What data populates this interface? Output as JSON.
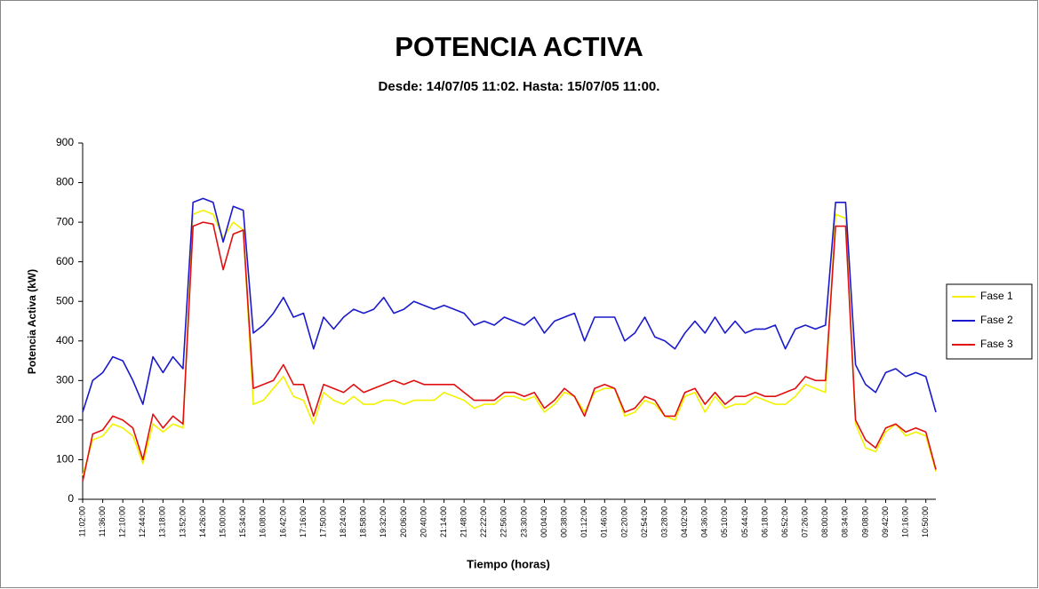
{
  "chart_data": {
    "type": "line",
    "title": "POTENCIA ACTIVA",
    "subtitle": "Desde: 14/07/05 11:02. Hasta: 15/07/05 11:00.",
    "x_label": "Tiempo (horas)",
    "y_label": "Potencia Activa (kW)",
    "categories": [
      "11:02:00",
      null,
      "11:36:00",
      null,
      "12:10:00",
      null,
      "12:44:00",
      null,
      "13:18:00",
      null,
      "13:52:00",
      null,
      "14:26:00",
      null,
      "15:00:00",
      null,
      "15:34:00",
      null,
      "16:08:00",
      null,
      "16:42:00",
      null,
      "17:16:00",
      null,
      "17:50:00",
      null,
      "18:24:00",
      null,
      "18:58:00",
      null,
      "19:32:00",
      null,
      "20:06:00",
      null,
      "20:40:00",
      null,
      "21:14:00",
      null,
      "21:48:00",
      null,
      "22:22:00",
      null,
      "22:56:00",
      null,
      "23:30:00",
      null,
      "00:04:00",
      null,
      "00:38:00",
      null,
      "01:12:00",
      null,
      "01:46:00",
      null,
      "02:20:00",
      null,
      "02:54:00",
      null,
      "03:28:00",
      null,
      "04:02:00",
      null,
      "04:36:00",
      null,
      "05:10:00",
      null,
      "05:44:00",
      null,
      "06:18:00",
      null,
      "06:52:00",
      null,
      "07:26:00",
      null,
      "08:00:00",
      null,
      "08:34:00",
      null,
      "09:08:00",
      null,
      "09:42:00",
      null,
      "10:16:00",
      null,
      "10:50:00",
      null
    ],
    "series": [
      {
        "name": "Fase 1",
        "color": "#f2f200",
        "values": [
          60,
          150,
          160,
          190,
          180,
          160,
          90,
          190,
          170,
          190,
          180,
          720,
          730,
          720,
          660,
          700,
          680,
          240,
          250,
          280,
          310,
          260,
          250,
          190,
          270,
          250,
          240,
          260,
          240,
          240,
          250,
          250,
          240,
          250,
          250,
          250,
          270,
          260,
          250,
          230,
          240,
          240,
          260,
          260,
          250,
          260,
          220,
          240,
          270,
          260,
          220,
          270,
          280,
          280,
          210,
          220,
          250,
          240,
          210,
          200,
          260,
          270,
          220,
          260,
          230,
          240,
          240,
          260,
          250,
          240,
          240,
          260,
          290,
          280,
          270,
          720,
          710,
          190,
          130,
          120,
          170,
          190,
          160,
          170,
          160,
          70
        ]
      },
      {
        "name": "Fase 2",
        "color": "#1a1acc",
        "values": [
          220,
          300,
          320,
          360,
          350,
          300,
          240,
          360,
          320,
          360,
          330,
          750,
          760,
          750,
          650,
          740,
          730,
          420,
          440,
          470,
          510,
          460,
          470,
          380,
          460,
          430,
          460,
          480,
          470,
          480,
          510,
          470,
          480,
          500,
          490,
          480,
          490,
          480,
          470,
          440,
          450,
          440,
          460,
          450,
          440,
          460,
          420,
          450,
          460,
          470,
          400,
          460,
          460,
          460,
          400,
          420,
          460,
          410,
          400,
          380,
          420,
          450,
          420,
          460,
          420,
          450,
          420,
          430,
          430,
          440,
          380,
          430,
          440,
          430,
          440,
          750,
          750,
          340,
          290,
          270,
          320,
          330,
          310,
          320,
          310,
          220
        ]
      },
      {
        "name": "Fase 3",
        "color": "#e01010",
        "values": [
          45,
          165,
          175,
          210,
          200,
          180,
          100,
          215,
          180,
          210,
          190,
          690,
          700,
          695,
          580,
          670,
          680,
          280,
          290,
          300,
          340,
          290,
          290,
          210,
          290,
          280,
          270,
          290,
          270,
          280,
          290,
          300,
          290,
          300,
          290,
          290,
          290,
          290,
          270,
          250,
          250,
          250,
          270,
          270,
          260,
          270,
          230,
          250,
          280,
          260,
          210,
          280,
          290,
          280,
          220,
          230,
          260,
          250,
          210,
          210,
          270,
          280,
          240,
          270,
          240,
          260,
          260,
          270,
          260,
          260,
          270,
          280,
          310,
          300,
          300,
          690,
          690,
          200,
          150,
          130,
          180,
          190,
          170,
          180,
          170,
          75
        ]
      }
    ],
    "ylim": [
      0,
      900
    ],
    "yticks": [
      0,
      100,
      200,
      300,
      400,
      500,
      600,
      700,
      800,
      900
    ],
    "grid": false,
    "legend": "right"
  }
}
